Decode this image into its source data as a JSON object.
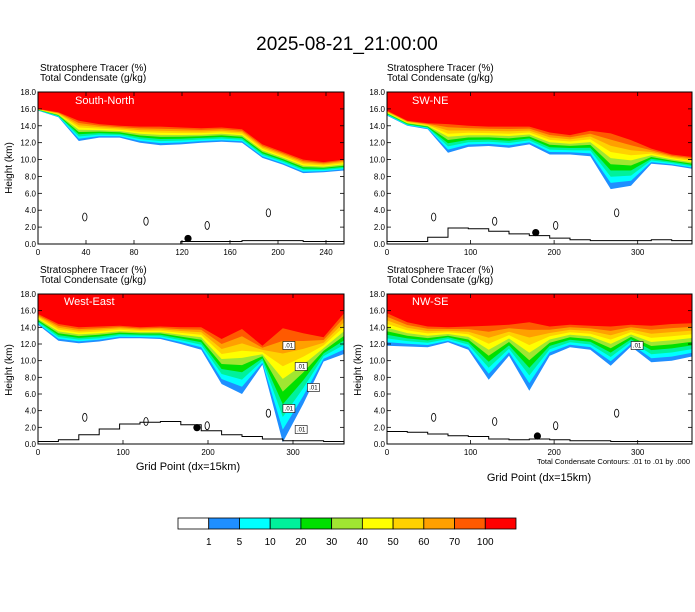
{
  "title": "2025-08-21_21:00:00",
  "note": "Total Condensate Contours: .01 to .01 by .000",
  "colors": {
    "levels": [
      "#ffffff",
      "#1f8fff",
      "#00ffff",
      "#00f19b",
      "#00e000",
      "#a0e632",
      "#ffff00",
      "#ffd200",
      "#ffa000",
      "#ff5a00",
      "#ff0000"
    ],
    "contour": "#000000"
  },
  "chart_data": [
    {
      "type": "heatmap",
      "region": "South-North",
      "labels": [
        "Stratosphere Tracer   (%)",
        "Total Condensate   (g/kg)"
      ],
      "ylabel": "Height (km)",
      "xlabel": "",
      "xlim": [
        0,
        255
      ],
      "ylim": [
        0,
        18
      ],
      "xticks": [
        "0",
        "40",
        "80",
        "120",
        "160",
        "200",
        "240"
      ],
      "yticks": [
        "0.0",
        "2.0",
        "4.0",
        "6.0",
        "8.0",
        "10.0",
        "12.0",
        "14.0",
        "16.0",
        "18.0"
      ],
      "tracer_100_base_km": [
        16.0,
        15.6,
        14.6,
        14.2,
        14.0,
        13.9,
        13.9,
        13.8,
        13.7,
        13.8,
        13.6,
        11.8,
        10.9,
        10.0,
        9.7,
        10.0
      ],
      "tracer_1_base_km": [
        15.8,
        15.0,
        12.2,
        12.6,
        12.6,
        12.0,
        11.7,
        11.8,
        12.0,
        12.1,
        12.0,
        10.2,
        9.4,
        8.4,
        8.5,
        8.7
      ],
      "terrain_km": [
        0,
        0,
        0,
        0,
        0,
        0,
        0,
        0.3,
        0.3,
        0.3,
        0.4,
        0.4,
        0.4,
        0.3,
        0.3,
        0.3
      ],
      "marker_x": 125
    },
    {
      "type": "heatmap",
      "region": "SW-NE",
      "labels": [
        "Stratosphere Tracer   (%)",
        "Total Condensate   (g/kg)"
      ],
      "ylabel": "",
      "xlabel": "",
      "xlim": [
        0,
        365
      ],
      "ylim": [
        0,
        18
      ],
      "xticks": [
        "0",
        "100",
        "200",
        "300"
      ],
      "yticks": [
        "0.0",
        "2.0",
        "4.0",
        "6.0",
        "8.0",
        "10.0",
        "12.0",
        "14.0",
        "16.0",
        "18.0"
      ],
      "tracer_100_base_km": [
        15.8,
        14.6,
        14.3,
        14.2,
        14.0,
        13.9,
        13.9,
        13.9,
        13.2,
        12.9,
        13.4,
        13.1,
        12.3,
        11.3,
        10.6,
        10.3
      ],
      "tracer_1_base_km": [
        15.2,
        14.0,
        13.6,
        10.8,
        11.5,
        11.6,
        11.4,
        11.8,
        10.6,
        10.6,
        10.4,
        6.5,
        6.9,
        9.5,
        9.3,
        8.9
      ],
      "terrain_km": [
        0.3,
        0.3,
        0.8,
        1.9,
        1.8,
        1.5,
        1.2,
        1.0,
        0.7,
        0.5,
        0.4,
        0.4,
        0.4,
        0.5,
        0.4,
        0.4
      ],
      "marker_x": 178
    },
    {
      "type": "heatmap",
      "region": "West-East",
      "labels": [
        "Stratosphere Tracer   (%)",
        "Total Condensate   (g/kg)"
      ],
      "ylabel": "Height (km)",
      "xlabel": "Grid Point (dx=15km)",
      "xlim": [
        0,
        360
      ],
      "ylim": [
        0,
        18
      ],
      "xticks": [
        "0",
        "100",
        "200",
        "300"
      ],
      "yticks": [
        "0.0",
        "2.0",
        "4.0",
        "6.0",
        "8.0",
        "10.0",
        "12.0",
        "14.0",
        "16.0",
        "18.0"
      ],
      "tracer_100_base_km": [
        15.6,
        14.4,
        14.0,
        14.1,
        14.2,
        14.0,
        14.1,
        14.0,
        14.0,
        12.6,
        13.8,
        11.8,
        13.9,
        13.3,
        12.8,
        15.7
      ],
      "tracer_1_base_km": [
        14.3,
        12.4,
        12.1,
        12.3,
        12.7,
        12.7,
        12.6,
        12.0,
        11.3,
        7.2,
        6.0,
        9.5,
        0.2,
        4.8,
        9.9,
        10.8
      ],
      "terrain_km": [
        0.3,
        0.5,
        1.1,
        1.8,
        2.4,
        2.6,
        2.7,
        2.3,
        1.6,
        1.1,
        0.9,
        0.6,
        0.4,
        0.4,
        0.3,
        0.3
      ],
      "marker_x": 187,
      "contour_labels": [
        ".01",
        ".01",
        ".01",
        ".01",
        ".01"
      ]
    },
    {
      "type": "heatmap",
      "region": "NW-SE",
      "labels": [],
      "ylabel": "Height (km)",
      "xlabel": "Grid Point (dx=15km)",
      "xlim": [
        0,
        365
      ],
      "ylim": [
        0,
        18
      ],
      "xticks": [
        "0",
        "100",
        "200",
        "300"
      ],
      "yticks": [
        "0.0",
        "2.0",
        "4.0",
        "6.0",
        "8.0",
        "10.0",
        "12.0",
        "14.0",
        "16.0",
        "18.0"
      ],
      "tracer_100_base_km": [
        15.7,
        14.6,
        14.1,
        14.0,
        14.1,
        14.2,
        14.3,
        14.6,
        14.1,
        14.3,
        14.2,
        14.1,
        14.3,
        14.2,
        14.4,
        14.5
      ],
      "tracer_1_base_km": [
        11.8,
        11.7,
        11.6,
        12.2,
        11.3,
        7.7,
        10.6,
        6.4,
        10.6,
        11.6,
        11.3,
        9.4,
        11.7,
        9.8,
        10.0,
        10.5
      ],
      "terrain_km": [
        1.5,
        1.4,
        1.2,
        1.0,
        0.9,
        0.6,
        0.5,
        0.6,
        0.5,
        0.4,
        0.4,
        0.3,
        0.3,
        0.3,
        0.3,
        0.3
      ],
      "marker_x": 180,
      "contour_labels": [
        ".01"
      ]
    }
  ],
  "colorbar": {
    "labels": [
      "1",
      "5",
      "10",
      "20",
      "30",
      "40",
      "50",
      "60",
      "70",
      "100"
    ]
  }
}
